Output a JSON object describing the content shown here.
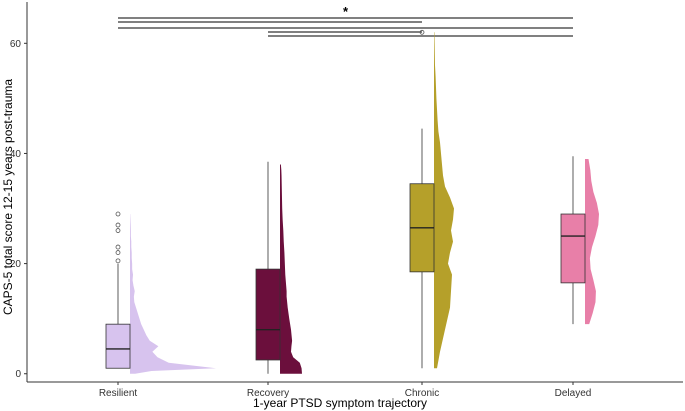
{
  "chart_data": {
    "type": "box",
    "xlabel": "1-year PTSD symptom trajectory",
    "ylabel": "CAPS-5 total score 12-15 years post-trauma",
    "ylim": [
      -1.5,
      67.5
    ],
    "yticks": [
      0,
      20,
      40,
      60
    ],
    "grid": false,
    "categories": [
      "Resilient",
      "Recovery",
      "Chronic",
      "Delayed"
    ],
    "colors": [
      "#d7c3ee",
      "#6b0f3c",
      "#b5a02a",
      "#e87fa8"
    ],
    "box_stats": [
      {
        "min": 1,
        "q1": 1,
        "median": 4.5,
        "q3": 9,
        "max": 20,
        "outliers": [
          20.5,
          22,
          23,
          26,
          27,
          29
        ]
      },
      {
        "min": 0,
        "q1": 2.5,
        "median": 8,
        "q3": 19,
        "max": 38.5,
        "outliers": []
      },
      {
        "min": 1,
        "q1": 18.5,
        "median": 26.5,
        "q3": 34.5,
        "max": 44.5,
        "outliers": [
          62
        ]
      },
      {
        "min": 9,
        "q1": 16.5,
        "median": 25,
        "q3": 29,
        "max": 39.5,
        "outliers": []
      }
    ],
    "density": [
      {
        "y": [
          0,
          0.5,
          1,
          2,
          3,
          4,
          5,
          6,
          7,
          8,
          9,
          10,
          11,
          12,
          13,
          14,
          15,
          16,
          17,
          18,
          19,
          20,
          21,
          22,
          23,
          24,
          25,
          26,
          27,
          28,
          29
        ],
        "w": [
          0.06,
          0.25,
          1.0,
          0.45,
          0.32,
          0.26,
          0.33,
          0.23,
          0.19,
          0.16,
          0.13,
          0.11,
          0.09,
          0.07,
          0.05,
          0.045,
          0.055,
          0.04,
          0.03,
          0.035,
          0.025,
          0.025,
          0.02,
          0.02,
          0.015,
          0.015,
          0.01,
          0.01,
          0.008,
          0.005,
          0.002
        ]
      },
      {
        "y": [
          0,
          1,
          2,
          3,
          4,
          5,
          6,
          8,
          10,
          12,
          14,
          15,
          16,
          18,
          20,
          22,
          24,
          26,
          28,
          30,
          32,
          34,
          36,
          37,
          38
        ],
        "w": [
          1.0,
          0.98,
          0.9,
          0.6,
          0.5,
          0.52,
          0.55,
          0.5,
          0.42,
          0.35,
          0.3,
          0.3,
          0.28,
          0.24,
          0.22,
          0.2,
          0.17,
          0.15,
          0.12,
          0.1,
          0.09,
          0.08,
          0.07,
          0.06,
          0.04
        ]
      },
      {
        "y": [
          1,
          4,
          8,
          12,
          15,
          18,
          20,
          22,
          24,
          26,
          28,
          30,
          32,
          34,
          36,
          38,
          40,
          42,
          44,
          46,
          48,
          50,
          52,
          54,
          56,
          58,
          60,
          62
        ],
        "w": [
          0.15,
          0.3,
          0.55,
          0.8,
          0.85,
          0.9,
          0.7,
          0.8,
          0.95,
          0.85,
          0.95,
          1.0,
          0.8,
          0.55,
          0.45,
          0.4,
          0.35,
          0.3,
          0.22,
          0.18,
          0.15,
          0.12,
          0.1,
          0.08,
          0.05,
          0.04,
          0.03,
          0.02
        ]
      },
      {
        "y": [
          9,
          11,
          13,
          15,
          17,
          19,
          21,
          23,
          25,
          27,
          29,
          31,
          33,
          35,
          37,
          39
        ],
        "w": [
          0.3,
          0.55,
          0.75,
          0.78,
          0.6,
          0.4,
          0.35,
          0.5,
          0.75,
          0.95,
          1.0,
          0.85,
          0.6,
          0.45,
          0.38,
          0.25
        ]
      }
    ],
    "significance": [
      {
        "from": "Resilient",
        "to": "Delayed",
        "label": "*"
      },
      {
        "from": "Resilient",
        "to": "Chronic",
        "label": ""
      },
      {
        "from": "Resilient",
        "to": "Delayed",
        "label": ""
      },
      {
        "from": "Recovery",
        "to": "Chronic",
        "label": ""
      },
      {
        "from": "Recovery",
        "to": "Delayed",
        "label": ""
      }
    ]
  }
}
